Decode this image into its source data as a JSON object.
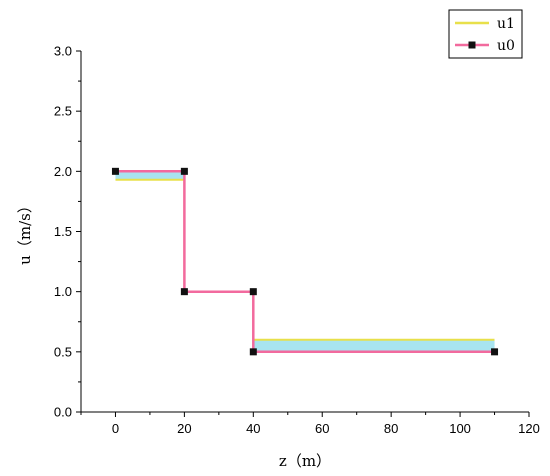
{
  "chart_data": {
    "type": "line",
    "xlabel": "z（m）",
    "ylabel": "u（m/s）",
    "xlim": [
      -10,
      120
    ],
    "ylim": [
      0,
      3.0
    ],
    "x_ticks": [
      0,
      20,
      40,
      60,
      80,
      100,
      120
    ],
    "y_ticks": [
      0.0,
      0.5,
      1.0,
      1.5,
      2.0,
      2.5,
      3.0
    ],
    "x_tick_labels": [
      "0",
      "20",
      "40",
      "60",
      "80",
      "100",
      "120"
    ],
    "y_tick_labels": [
      "0.0",
      "0.5",
      "1.0",
      "1.5",
      "2.0",
      "2.5",
      "3.0"
    ],
    "grid": false,
    "legend_position": "top-right",
    "fill_between_color": "#a8e4f0",
    "series": [
      {
        "name": "u1",
        "color": "#e8e04a",
        "marker": "none",
        "points": [
          [
            0,
            1.93
          ],
          [
            20,
            1.93
          ],
          [
            20,
            1.0
          ],
          [
            40,
            1.0
          ],
          [
            40,
            0.6
          ],
          [
            110,
            0.6
          ]
        ]
      },
      {
        "name": "u0",
        "color": "#f26a9e",
        "marker": "square",
        "marker_color": "#111111",
        "points": [
          [
            0,
            2.0
          ],
          [
            20,
            2.0
          ],
          [
            20,
            1.0
          ],
          [
            40,
            1.0
          ],
          [
            40,
            0.5
          ],
          [
            110,
            0.5
          ]
        ]
      }
    ]
  }
}
